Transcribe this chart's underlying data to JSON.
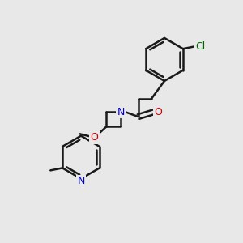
{
  "background_color": "#e8e8e8",
  "bond_color": "#1a1a1a",
  "bond_width": 1.8,
  "atom_colors": {
    "N": "#0000cc",
    "O": "#cc0000",
    "Cl": "#006600"
  },
  "font_size": 9,
  "figsize": [
    3.0,
    3.0
  ],
  "dpi": 100,
  "xlim": [
    0,
    10
  ],
  "ylim": [
    0,
    10
  ]
}
